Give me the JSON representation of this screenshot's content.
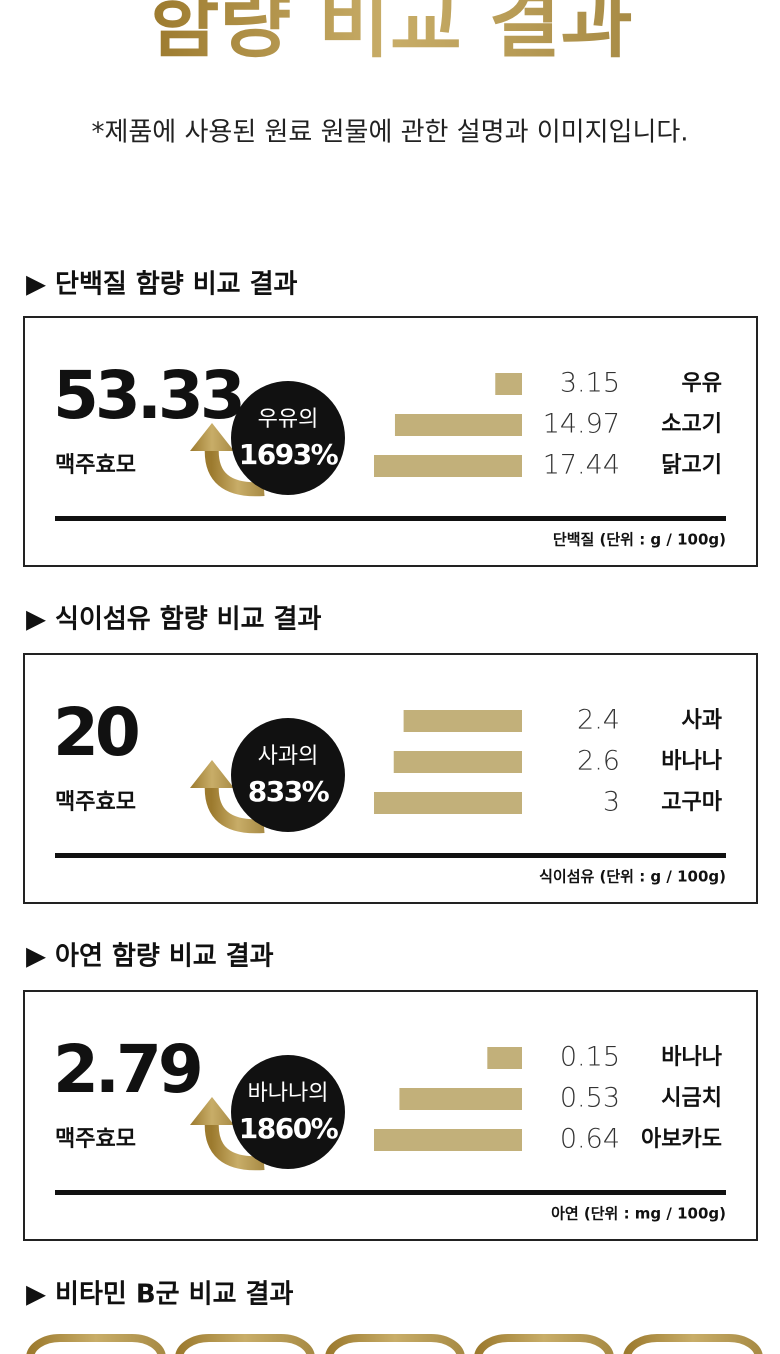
{
  "header": {
    "title": "함량 비교 결과",
    "subtitle": "*제품에 사용된 원료 원물에 관한 설명과 이미지입니다."
  },
  "sections": [
    {
      "title": "▶ 단백질 함량 비교 결과",
      "value": 53.33,
      "unit_label": "맥주효모",
      "badge": {
        "label": "우유의",
        "percent": "1693%"
      },
      "items": [
        {
          "value": 3.15,
          "name": "우유"
        },
        {
          "value": 14.97,
          "name": "소고기"
        },
        {
          "value": 17.44,
          "name": "닭고기"
        }
      ],
      "note": "단백질 (단위 : g / 100g)"
    },
    {
      "title": "▶ 식이섬유 함량 비교 결과",
      "value": 20,
      "unit_label": "맥주효모",
      "badge": {
        "label": "사과의",
        "percent": "833%"
      },
      "items": [
        {
          "value": 2.4,
          "name": "사과"
        },
        {
          "value": 2.6,
          "name": "바나나"
        },
        {
          "value": 3,
          "name": "고구마"
        }
      ],
      "note": "식이섬유 (단위 : g / 100g)"
    },
    {
      "title": "▶ 아연 함량 비교 결과",
      "value": 2.79,
      "unit_label": "맥주효모",
      "badge": {
        "label": "바나나의",
        "percent": "1860%"
      },
      "items": [
        {
          "value": 0.15,
          "name": "바나나"
        },
        {
          "value": 0.53,
          "name": "시금치"
        },
        {
          "value": 0.64,
          "name": "아보카도"
        }
      ],
      "note": "아연 (단위 : mg / 100g)"
    },
    {
      "title": "▶ 비타민 B군 비교 결과"
    }
  ]
}
